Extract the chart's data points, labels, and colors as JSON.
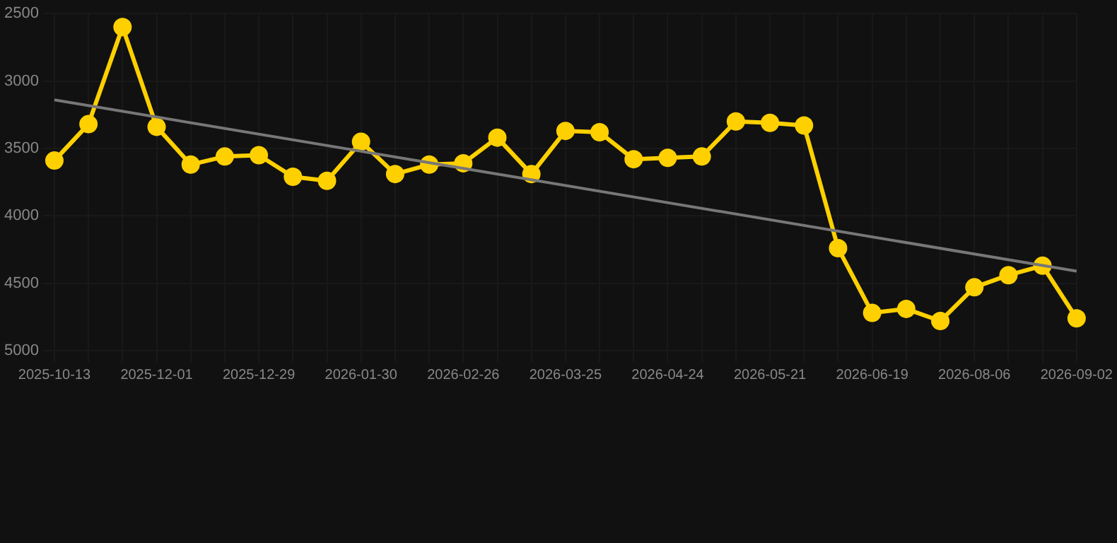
{
  "chart_data": {
    "type": "line",
    "categories": [
      "2025-10-13",
      null,
      null,
      "2025-12-01",
      null,
      null,
      "2025-12-29",
      null,
      null,
      "2026-01-30",
      null,
      null,
      "2026-02-26",
      null,
      null,
      "2026-03-25",
      null,
      null,
      "2026-04-24",
      null,
      null,
      "2026-05-21",
      null,
      null,
      "2026-06-19",
      null,
      null,
      "2026-08-06",
      null,
      null,
      "2026-09-02"
    ],
    "series": [
      {
        "color": "#ffd000",
        "marker": "circle",
        "values": [
          3590,
          3320,
          2600,
          3340,
          3620,
          3560,
          3550,
          3710,
          3740,
          3450,
          3690,
          3620,
          3610,
          3420,
          3690,
          3370,
          3380,
          3580,
          3570,
          3560,
          3300,
          3310,
          3330,
          4240,
          4720,
          4690,
          4780,
          4530,
          4440,
          4370,
          4760
        ]
      },
      {
        "type": "line",
        "color": "#777777",
        "marker": "none",
        "values": [
          3140,
          null,
          null,
          null,
          null,
          null,
          null,
          null,
          null,
          null,
          null,
          null,
          null,
          null,
          null,
          null,
          null,
          null,
          null,
          null,
          null,
          null,
          null,
          null,
          null,
          null,
          null,
          null,
          null,
          null,
          4410
        ]
      }
    ],
    "ylim": [
      5000,
      2500
    ],
    "yticks": [
      2500,
      3000,
      3500,
      4000,
      4500,
      5000
    ],
    "grid": true,
    "legend": false
  }
}
